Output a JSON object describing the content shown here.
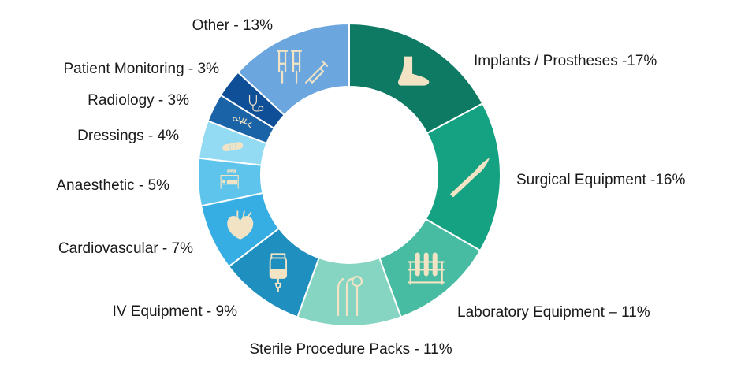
{
  "chart_data": {
    "type": "pie",
    "variant": "donut",
    "title": "",
    "legend": "none",
    "slices": [
      {
        "label": "Implants / Prostheses -17%",
        "value": 17,
        "color": "#0e7a63",
        "icon": "foot-icon"
      },
      {
        "label": "Surgical Equipment -16%",
        "value": 16,
        "color": "#14a283",
        "icon": "scalpel-icon"
      },
      {
        "label": "Laboratory Equipment – 11%",
        "value": 11,
        "color": "#47bca2",
        "icon": "test-tubes-icon"
      },
      {
        "label": "Sterile Procedure Packs - 11%",
        "value": 11,
        "color": "#86d5c2",
        "icon": "dental-tools-icon"
      },
      {
        "label": "IV Equipment - 9%",
        "value": 9,
        "color": "#1f8fbf",
        "icon": "iv-bag-icon"
      },
      {
        "label": "Cardiovascular - 7%",
        "value": 7,
        "color": "#37aee3",
        "icon": "heart-icon"
      },
      {
        "label": "Anaesthetic - 5%",
        "value": 5,
        "color": "#5ec4ec",
        "icon": "patient-bed-icon"
      },
      {
        "label": "Dressings - 4%",
        "value": 4,
        "color": "#93dbf3",
        "icon": "bandage-icon"
      },
      {
        "label": "Radiology - 3%",
        "value": 3,
        "color": "#1a63a6",
        "icon": "skeleton-icon"
      },
      {
        "label": "Patient Monitoring - 3%",
        "value": 3,
        "color": "#0e4f98",
        "icon": "stethoscope-icon"
      },
      {
        "label": "Other - 13%",
        "value": 13,
        "color": "#6ba6de",
        "icon": "crutches-syringe-icon"
      }
    ]
  }
}
